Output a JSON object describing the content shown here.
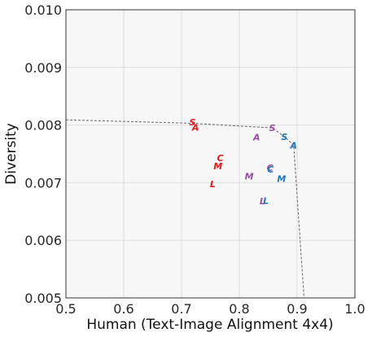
{
  "chart_data": {
    "type": "scatter",
    "title": "",
    "xlabel": "Human (Text-Image Alignment 4x4)",
    "ylabel": "Diversity",
    "xlim": [
      0.5,
      1.0
    ],
    "ylim": [
      0.005,
      0.01
    ],
    "xticks": [
      "0.5",
      "0.6",
      "0.7",
      "0.8",
      "0.9",
      "1.0"
    ],
    "yticks": [
      "0.005",
      "0.006",
      "0.007",
      "0.008",
      "0.009",
      "0.010"
    ],
    "grid": true,
    "series": [
      {
        "color": "#e41a1c",
        "points": [
          {
            "label": "S",
            "x": 0.719,
            "y": 0.00805
          },
          {
            "label": "A",
            "x": 0.724,
            "y": 0.00796
          },
          {
            "label": "C",
            "x": 0.767,
            "y": 0.00743
          },
          {
            "label": "M",
            "x": 0.763,
            "y": 0.00729
          },
          {
            "label": "L",
            "x": 0.754,
            "y": 0.00698
          }
        ]
      },
      {
        "color": "#984ea3",
        "points": [
          {
            "label": "S",
            "x": 0.857,
            "y": 0.00795
          },
          {
            "label": "A",
            "x": 0.83,
            "y": 0.00779
          },
          {
            "label": "M",
            "x": 0.817,
            "y": 0.00711
          },
          {
            "label": "C",
            "x": 0.853,
            "y": 0.00726
          },
          {
            "label": "L",
            "x": 0.84,
            "y": 0.00668
          }
        ]
      },
      {
        "color": "#1f77b4",
        "points": [
          {
            "label": "S",
            "x": 0.878,
            "y": 0.0078
          },
          {
            "label": "A",
            "x": 0.894,
            "y": 0.00765
          },
          {
            "label": "C",
            "x": 0.854,
            "y": 0.00723
          },
          {
            "label": "M",
            "x": 0.873,
            "y": 0.00707
          },
          {
            "label": "L",
            "x": 0.846,
            "y": 0.00669
          }
        ]
      }
    ],
    "frontier": {
      "color": "#666666",
      "points": [
        {
          "x": 0.5,
          "y": 0.00809
        },
        {
          "x": 0.719,
          "y": 0.00803
        },
        {
          "x": 0.857,
          "y": 0.00795
        },
        {
          "x": 0.878,
          "y": 0.0078
        },
        {
          "x": 0.894,
          "y": 0.00765
        },
        {
          "x": 0.912,
          "y": 0.005
        }
      ]
    }
  }
}
